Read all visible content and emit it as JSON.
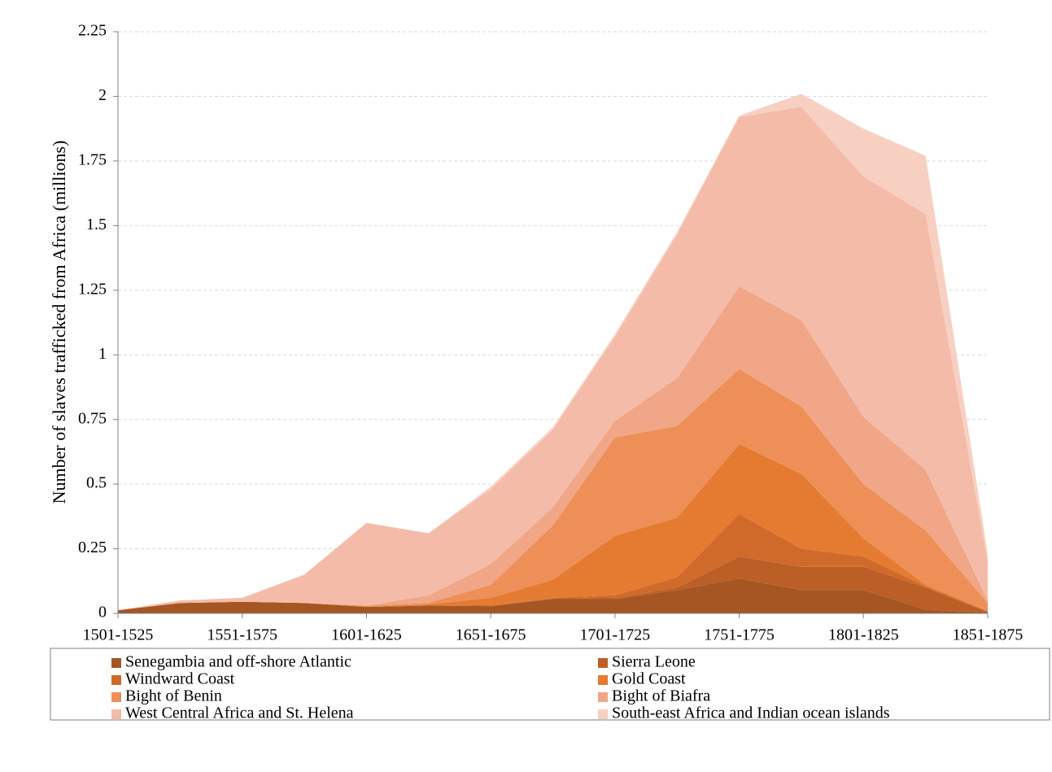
{
  "chart_data": {
    "type": "stacked_area",
    "ylabel": "Number of slaves trafficked from Africa (millions)",
    "categories": [
      "1501-1525",
      null,
      "1551-1575",
      null,
      "1601-1625",
      null,
      "1651-1675",
      null,
      "1701-1725",
      null,
      "1751-1775",
      null,
      "1801-1825",
      null,
      "1851-1875"
    ],
    "ylim": [
      0,
      2.25
    ],
    "yticks": [
      0,
      0.25,
      0.5,
      0.75,
      1,
      1.25,
      1.5,
      1.75,
      2,
      2.25
    ],
    "grid": true,
    "legend": "bottom",
    "series": [
      {
        "name": "Senegambia and off-shore Atlantic",
        "color": "#a65623",
        "values": [
          0.012,
          0.04,
          0.045,
          0.04,
          0.025,
          0.03,
          0.028,
          0.055,
          0.055,
          0.09,
          0.135,
          0.09,
          0.09,
          0.015,
          0.003
        ]
      },
      {
        "name": "Sierra Leone",
        "color": "#bb5f27",
        "values": [
          0,
          0,
          0,
          0,
          0,
          0,
          0.002,
          0.003,
          0.005,
          0.01,
          0.085,
          0.09,
          0.09,
          0.085,
          0.002
        ]
      },
      {
        "name": "Windward Coast",
        "color": "#d06a2b",
        "values": [
          0,
          0,
          0,
          0,
          0,
          0,
          0,
          0.002,
          0.01,
          0.04,
          0.165,
          0.07,
          0.04,
          0.005,
          0.003
        ]
      },
      {
        "name": "Gold Coast",
        "color": "#e57a31",
        "values": [
          0,
          0,
          0,
          0,
          0,
          0.005,
          0.03,
          0.07,
          0.23,
          0.23,
          0.27,
          0.29,
          0.07,
          0.005,
          0.002
        ]
      },
      {
        "name": "Bight of Benin",
        "color": "#ed8f57",
        "values": [
          0,
          0,
          0,
          0,
          0.005,
          0.005,
          0.05,
          0.21,
          0.38,
          0.355,
          0.29,
          0.26,
          0.21,
          0.21,
          0.03
        ]
      },
      {
        "name": "Bight of Biafra",
        "color": "#f0a687",
        "values": [
          0,
          0,
          0,
          0,
          0,
          0.03,
          0.08,
          0.07,
          0.065,
          0.185,
          0.32,
          0.335,
          0.26,
          0.235,
          0.01
        ]
      },
      {
        "name": "West Central Africa and St. Helena",
        "color": "#f4bca8",
        "values": [
          0,
          0.01,
          0.015,
          0.11,
          0.32,
          0.24,
          0.29,
          0.3,
          0.325,
          0.555,
          0.655,
          0.825,
          0.93,
          0.99,
          0.15
        ]
      },
      {
        "name": "South-east Africa and Indian ocean islands",
        "color": "#f7d0c2",
        "values": [
          0,
          0,
          0,
          0,
          0,
          0,
          0.01,
          0.01,
          0.01,
          0.01,
          0.005,
          0.05,
          0.185,
          0.225,
          0.03
        ]
      }
    ]
  }
}
